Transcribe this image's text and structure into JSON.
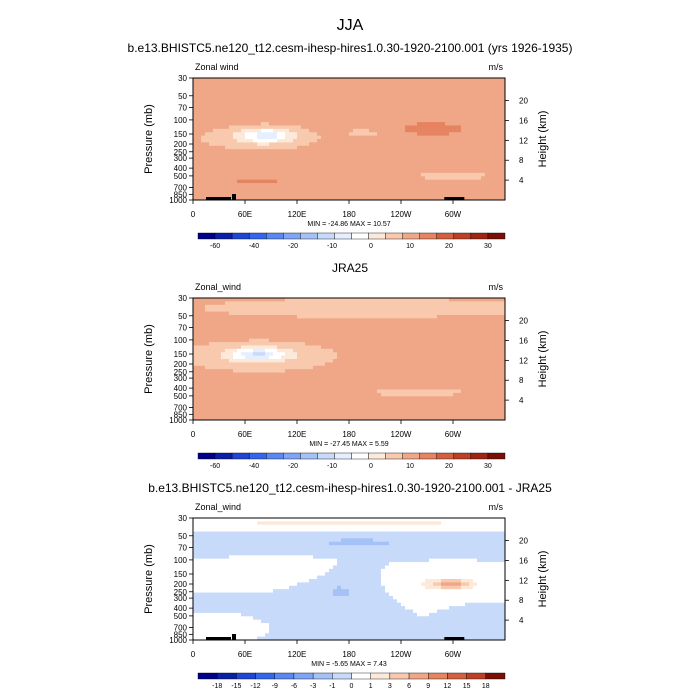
{
  "figure": {
    "title": "JJA"
  },
  "chart_data": [
    {
      "type": "heatmap",
      "title": "b.e13.BHISTC5.ne120_t12.cesm-ihesp-hires1.0.30-1920-2100.001 (yrs 1926-1935)",
      "left_label": "Zonal wind",
      "units": "m/s",
      "ylabel": "Pressure (mb)",
      "ylabel_right": "Height (km)",
      "pressure_ticks": [
        "30",
        "50",
        "70",
        "100",
        "150",
        "200",
        "250",
        "300",
        "400",
        "500",
        "700",
        "850",
        "1000"
      ],
      "height_ticks": [
        "20",
        "16",
        "12",
        "8",
        "4"
      ],
      "xtick_labels": [
        "0",
        "60E",
        "120E",
        "180",
        "120W",
        "60W"
      ],
      "xlim": [
        0,
        360
      ],
      "minmax_text": "MIN = -24.86   MAX = 10.57",
      "colorbar_labels": [
        "-60",
        "-40",
        "-20",
        "-10",
        "0",
        "10",
        "20",
        "30"
      ],
      "colorbar_colors": [
        "#00008b",
        "#0a1fa8",
        "#1e46d6",
        "#3366ee",
        "#5a88f3",
        "#7fa6f6",
        "#a4c1f8",
        "#c7daf9",
        "#e6efff",
        "#ffffff",
        "#fde9da",
        "#f8c9ad",
        "#f0a787",
        "#e68360",
        "#d45f3e",
        "#bd3f25",
        "#9f2513",
        "#7a0f08"
      ],
      "blobs": [
        {
          "lon": 85,
          "p": 155,
          "rx": 30,
          "ry": 34,
          "v": -14
        },
        {
          "lon": 75,
          "p": 170,
          "rx": 55,
          "ry": 55,
          "v": -6
        },
        {
          "lon": 210,
          "p": 140,
          "rx": 40,
          "ry": 45,
          "v": -3
        },
        {
          "lon": 300,
          "p": 500,
          "rx": 50,
          "ry": 65,
          "v": -3
        },
        {
          "lon": 75,
          "p": 600,
          "rx": 30,
          "ry": 40,
          "v": 7
        },
        {
          "lon": 270,
          "p": 130,
          "rx": 55,
          "ry": 35,
          "v": 6
        },
        {
          "lon": 230,
          "p": 220,
          "rx": 50,
          "ry": 40,
          "v": 3
        }
      ],
      "base": 1.5
    },
    {
      "type": "heatmap",
      "title": "JRA25",
      "left_label": "Zonal_wind",
      "units": "m/s",
      "ylabel": "Pressure (mb)",
      "ylabel_right": "Height (km)",
      "pressure_ticks": [
        "30",
        "50",
        "70",
        "100",
        "150",
        "200",
        "250",
        "300",
        "400",
        "500",
        "700",
        "850",
        "1000"
      ],
      "height_ticks": [
        "20",
        "16",
        "12",
        "8",
        "4"
      ],
      "xtick_labels": [
        "0",
        "60E",
        "120E",
        "180",
        "120W",
        "60W"
      ],
      "xlim": [
        0,
        360
      ],
      "minmax_text": "MIN = -27.45   MAX =  5.59",
      "colorbar_labels": [
        "-60",
        "-40",
        "-20",
        "-10",
        "0",
        "10",
        "20",
        "30"
      ],
      "colorbar_colors": [
        "#00008b",
        "#0a1fa8",
        "#1e46d6",
        "#3366ee",
        "#5a88f3",
        "#7fa6f6",
        "#a4c1f8",
        "#c7daf9",
        "#e6efff",
        "#ffffff",
        "#fde9da",
        "#f8c9ad",
        "#f0a787",
        "#e68360",
        "#d45f3e",
        "#bd3f25",
        "#9f2513",
        "#7a0f08"
      ],
      "blobs": [
        {
          "lon": 75,
          "p": 150,
          "rx": 30,
          "ry": 30,
          "v": -15
        },
        {
          "lon": 75,
          "p": 160,
          "rx": 65,
          "ry": 60,
          "v": -7
        },
        {
          "lon": 200,
          "p": 40,
          "rx": 180,
          "ry": 12,
          "v": -3
        },
        {
          "lon": 260,
          "p": 450,
          "rx": 60,
          "ry": 70,
          "v": -2
        },
        {
          "lon": 300,
          "p": 150,
          "rx": 30,
          "ry": 25,
          "v": 4
        },
        {
          "lon": 80,
          "p": 750,
          "rx": 30,
          "ry": 30,
          "v": 2
        }
      ],
      "base": 1.0
    },
    {
      "type": "heatmap",
      "title": "b.e13.BHISTC5.ne120_t12.cesm-ihesp-hires1.0.30-1920-2100.001 - JRA25",
      "left_label": "Zonal_wind",
      "units": "m/s",
      "ylabel": "Pressure (mb)",
      "ylabel_right": "Height (km)",
      "pressure_ticks": [
        "30",
        "50",
        "70",
        "100",
        "150",
        "200",
        "250",
        "300",
        "400",
        "500",
        "700",
        "850",
        "1000"
      ],
      "height_ticks": [
        "20",
        "16",
        "12",
        "8",
        "4"
      ],
      "xtick_labels": [
        "0",
        "60E",
        "120E",
        "180",
        "120W",
        "60W"
      ],
      "xlim": [
        0,
        360
      ],
      "minmax_text": "MIN = -5.65   MAX =  7.43",
      "colorbar_labels": [
        "-18",
        "-15",
        "-12",
        "-9",
        "-6",
        "-3",
        "-1",
        "0",
        "1",
        "3",
        "6",
        "9",
        "12",
        "15",
        "18"
      ],
      "colorbar_colors": [
        "#00008b",
        "#0a1fa8",
        "#1e46d6",
        "#3366ee",
        "#5a88f3",
        "#7fa6f6",
        "#a4c1f8",
        "#c7daf9",
        "#ffffff",
        "#fde9da",
        "#f8c9ad",
        "#f0a787",
        "#e68360",
        "#d45f3e",
        "#bd3f25",
        "#7a0f08"
      ],
      "blobs": [
        {
          "lon": 180,
          "p": 35,
          "rx": 200,
          "ry": 5,
          "v": 3
        },
        {
          "lon": 190,
          "p": 60,
          "rx": 130,
          "ry": 14,
          "v": -2.5
        },
        {
          "lon": 170,
          "p": 250,
          "rx": 30,
          "ry": 120,
          "v": -2.5
        },
        {
          "lon": 290,
          "p": 200,
          "rx": 40,
          "ry": 60,
          "v": 3
        },
        {
          "lon": 300,
          "p": 200,
          "rx": 20,
          "ry": 25,
          "v": 6
        },
        {
          "lon": 40,
          "p": 600,
          "rx": 20,
          "ry": 80,
          "v": 2
        },
        {
          "lon": 120,
          "p": 400,
          "rx": 40,
          "ry": 100,
          "v": -1.5
        },
        {
          "lon": 100,
          "p": 140,
          "rx": 40,
          "ry": 40,
          "v": 1.5
        },
        {
          "lon": 340,
          "p": 500,
          "rx": 20,
          "ry": 100,
          "v": -2
        }
      ],
      "base": 0.0
    }
  ]
}
